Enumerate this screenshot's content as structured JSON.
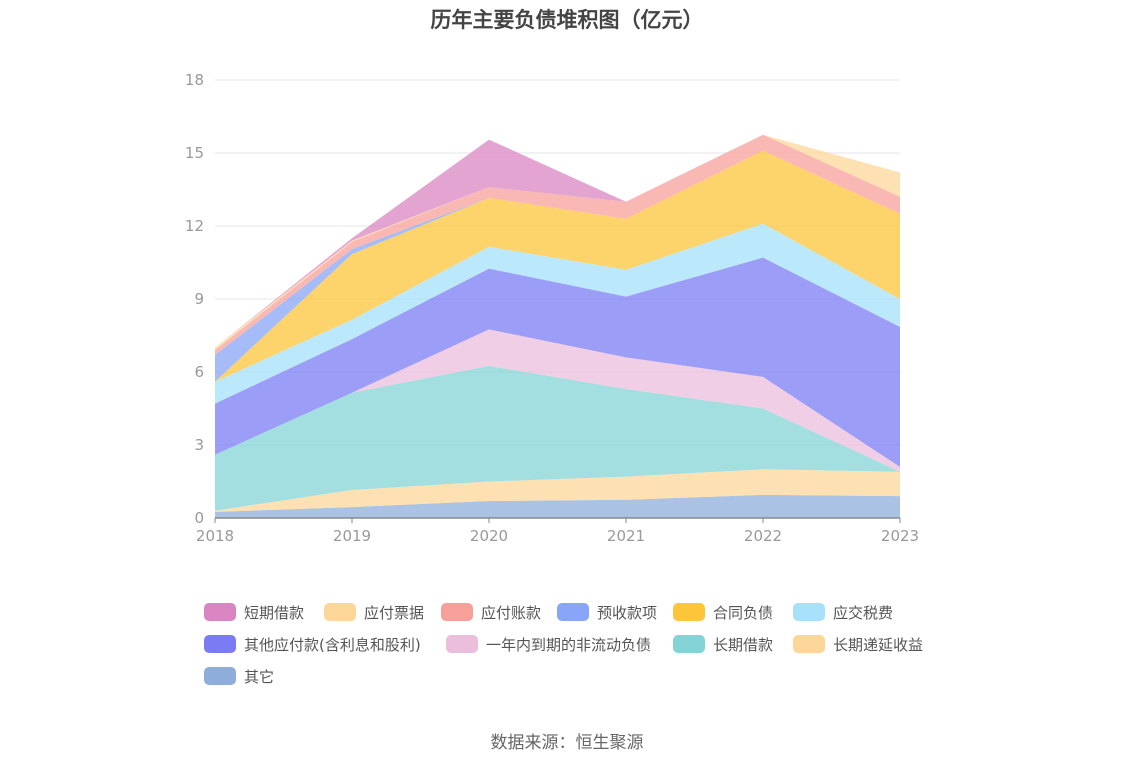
{
  "title": "历年主要负债堆积图（亿元）",
  "source": "数据来源：恒生聚源",
  "chart_data": {
    "type": "area",
    "stacked": true,
    "x": [
      "2018",
      "2019",
      "2020",
      "2021",
      "2022",
      "2023"
    ],
    "ylim": [
      0,
      18
    ],
    "yticks": [
      0,
      3,
      6,
      9,
      12,
      15,
      18
    ],
    "grid": true,
    "legend_position": "bottom",
    "series": [
      {
        "name": "其它",
        "color": "#8eaddb",
        "values": [
          0.25,
          0.45,
          0.7,
          0.75,
          0.95,
          0.9
        ]
      },
      {
        "name": "长期递延收益",
        "color": "#fdd79a",
        "values": [
          0.05,
          0.7,
          0.8,
          0.95,
          1.05,
          1.0
        ]
      },
      {
        "name": "长期借款",
        "color": "#84d4d7",
        "values": [
          2.3,
          4.0,
          4.75,
          3.6,
          2.5,
          0.0
        ]
      },
      {
        "name": "一年内到期的非流动负债",
        "color": "#ebbedc",
        "values": [
          0.0,
          0.0,
          1.5,
          1.3,
          1.3,
          0.2
        ]
      },
      {
        "name": "其他应付款(含利息和股利)",
        "color": "#7b7cf3",
        "values": [
          2.1,
          2.2,
          2.5,
          2.5,
          4.9,
          5.75
        ]
      },
      {
        "name": "应交税费",
        "color": "#a6e0f9",
        "values": [
          0.9,
          0.8,
          0.9,
          1.1,
          1.4,
          1.15
        ]
      },
      {
        "name": "合同负债",
        "color": "#fcc63a",
        "values": [
          0.0,
          2.7,
          2.0,
          2.1,
          3.0,
          3.5
        ]
      },
      {
        "name": "预收款项",
        "color": "#88a5f7",
        "values": [
          1.1,
          0.2,
          0.0,
          0.0,
          0.0,
          0.0
        ]
      },
      {
        "name": "应付账款",
        "color": "#f7a09a",
        "values": [
          0.2,
          0.3,
          0.45,
          0.7,
          0.65,
          0.7
        ]
      },
      {
        "name": "应付票据",
        "color": "#fdd79a",
        "values": [
          0.1,
          0.05,
          0.0,
          0.0,
          0.0,
          1.0
        ]
      },
      {
        "name": "短期借款",
        "color": "#d985c2",
        "values": [
          0.0,
          0.1,
          1.95,
          0.0,
          0.0,
          0.0
        ]
      }
    ],
    "legend_order": [
      "短期借款",
      "应付票据",
      "应付账款",
      "预收款项",
      "合同负债",
      "应交税费",
      "其他应付款(含利息和股利)",
      "一年内到期的非流动负债",
      "长期借款",
      "长期递延收益",
      "其它"
    ]
  }
}
